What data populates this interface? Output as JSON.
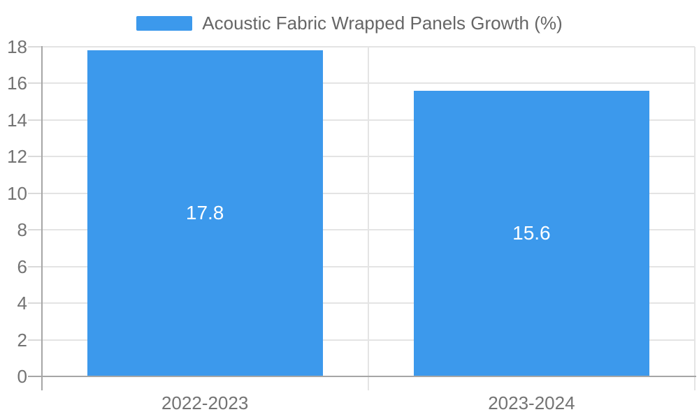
{
  "chart_data": {
    "type": "bar",
    "title": "Acoustic Fabric Wrapped Panels Growth (%)",
    "series_name": "Acoustic Fabric Wrapped Panels Growth (%)",
    "categories": [
      "2022-2023",
      "2023-2024"
    ],
    "values": [
      17.8,
      15.6
    ],
    "bar_labels": [
      "17.8",
      "15.6"
    ],
    "xlabel": "",
    "ylabel": "",
    "ylim": [
      0,
      18
    ],
    "yticks": [
      0,
      2,
      4,
      6,
      8,
      10,
      12,
      14,
      16,
      18
    ],
    "grid": true,
    "legend_position": "top-center",
    "colors": {
      "bar": "#3C99EC",
      "bar_label_text": "#FFFFFF",
      "grid_line": "#E4E4E4",
      "tick_line": "#DADADA",
      "axis_line": "#A6A6A6",
      "axis_text": "#737373",
      "legend_text": "#666666",
      "background": "#FFFFFF"
    }
  },
  "legend": {
    "label": "Acoustic Fabric Wrapped Panels Growth (%)"
  }
}
